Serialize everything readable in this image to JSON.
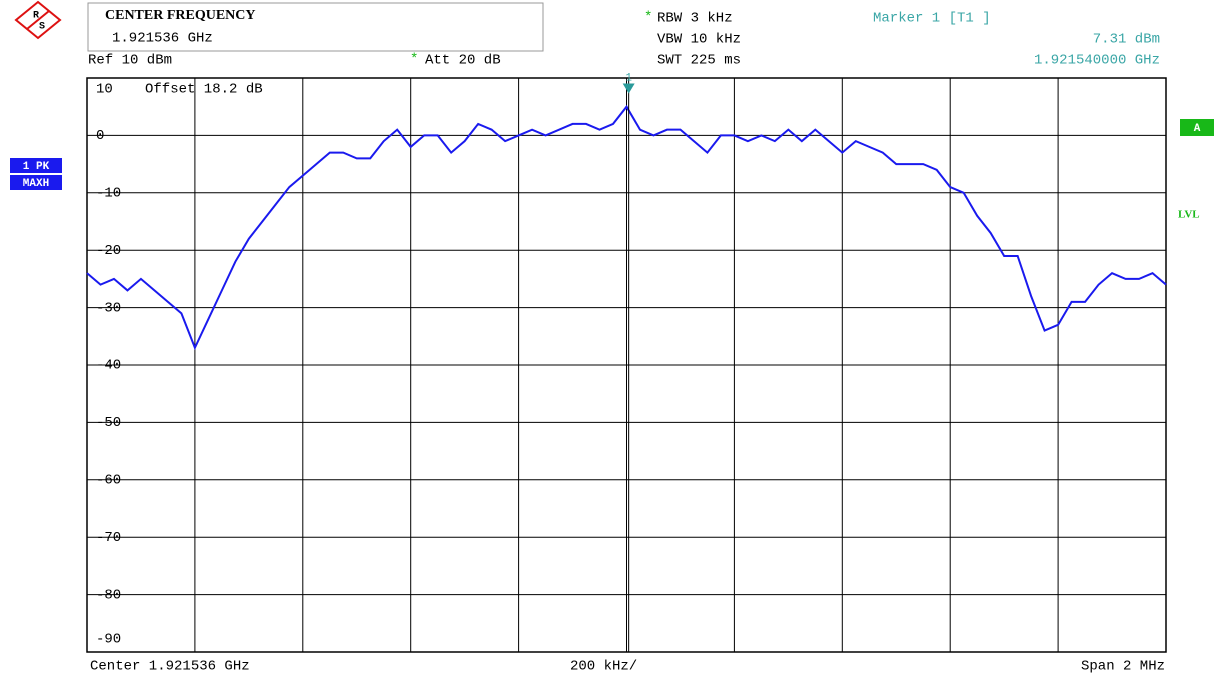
{
  "chart_data": {
    "type": "line",
    "logo": {
      "r": "R",
      "s": "S"
    },
    "header": {
      "title": "CENTER FREQUENCY",
      "center": "1.921536 GHz",
      "ref": "Ref 10 dBm",
      "att_flag": "*",
      "att": "Att 20 dB",
      "rbw_flag": "*",
      "rbw": "RBW 3 kHz",
      "vbw": "VBW 10 kHz",
      "swt": "SWT 225 ms",
      "marker_title": "Marker 1 [T1 ]",
      "offset": "Offset 18.2 dB"
    },
    "side": {
      "trace": "1 PK",
      "mode": "MAXH",
      "a": "A",
      "lvl": "LVL"
    },
    "footer": {
      "center": "Center 1.921536 GHz",
      "div": "200 kHz/",
      "span": "Span 2 MHz"
    },
    "marker": {
      "label": "1",
      "x": 1.92154,
      "value": 7.31,
      "value_label": "7.31 dBm",
      "x_label": "1.921540000 GHz"
    },
    "xlim": [
      1.920536,
      1.922536
    ],
    "xticks": [
      1.920536,
      1.920736,
      1.920936,
      1.921136,
      1.921336,
      1.921536,
      1.921736,
      1.921936,
      1.922136,
      1.922336,
      1.922536
    ],
    "ylim": [
      -90,
      10
    ],
    "yticks": [
      10,
      0,
      -10,
      -20,
      -30,
      -40,
      -50,
      -60,
      -70,
      -80,
      -90
    ],
    "grid": true,
    "x": [
      1.920536,
      1.920561,
      1.920586,
      1.920611,
      1.920636,
      1.920661,
      1.920686,
      1.920711,
      1.920736,
      1.920761,
      1.920786,
      1.920811,
      1.920836,
      1.920861,
      1.920886,
      1.920911,
      1.920936,
      1.920961,
      1.920986,
      1.921011,
      1.921036,
      1.921061,
      1.921086,
      1.921111,
      1.921136,
      1.921161,
      1.921186,
      1.921211,
      1.921236,
      1.921261,
      1.921286,
      1.921311,
      1.921336,
      1.921361,
      1.921386,
      1.921411,
      1.921436,
      1.921461,
      1.921486,
      1.921511,
      1.921536,
      1.921561,
      1.921586,
      1.921611,
      1.921636,
      1.921661,
      1.921686,
      1.921711,
      1.921736,
      1.921761,
      1.921786,
      1.921811,
      1.921836,
      1.921861,
      1.921886,
      1.921911,
      1.921936,
      1.921961,
      1.921986,
      1.922011,
      1.922036,
      1.922061,
      1.922086,
      1.922111,
      1.922136,
      1.922161,
      1.922186,
      1.922211,
      1.922236,
      1.922261,
      1.922286,
      1.922311,
      1.922336,
      1.922361,
      1.922386,
      1.922411,
      1.922436,
      1.922461,
      1.922486,
      1.922511,
      1.922536
    ],
    "series": [
      {
        "color": "#1a1aee",
        "values": [
          -24,
          -26,
          -25,
          -27,
          -25,
          -27,
          -29,
          -31,
          -37,
          -32,
          -27,
          -22,
          -18,
          -15,
          -12,
          -9,
          -7,
          -5,
          -3,
          -3,
          -4,
          -4,
          -1,
          1,
          -2,
          0,
          0,
          -3,
          -1,
          2,
          1,
          -1,
          0,
          1,
          0,
          1,
          2,
          2,
          1,
          2,
          5,
          1,
          0,
          1,
          1,
          -1,
          -3,
          0,
          0,
          -1,
          0,
          -1,
          1,
          -1,
          1,
          -1,
          -3,
          -1,
          -2,
          -3,
          -5,
          -5,
          -5,
          -6,
          -9,
          -10,
          -14,
          -17,
          -21,
          -21,
          -28,
          -34,
          -33,
          -29,
          -29,
          -26,
          -24,
          -25,
          -25,
          -24,
          -26
        ]
      }
    ]
  }
}
